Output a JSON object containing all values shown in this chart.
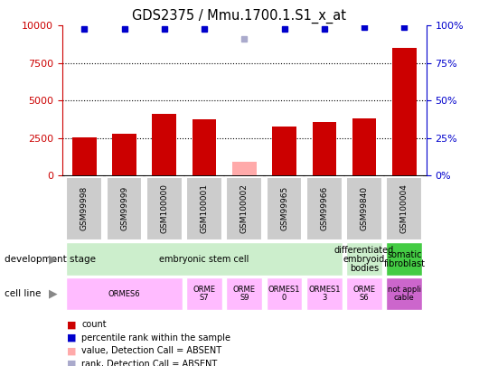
{
  "title": "GDS2375 / Mmu.1700.1.S1_x_at",
  "samples": [
    "GSM99998",
    "GSM99999",
    "GSM100000",
    "GSM100001",
    "GSM100002",
    "GSM99965",
    "GSM99966",
    "GSM99840",
    "GSM100004"
  ],
  "counts": [
    2550,
    2800,
    4100,
    3750,
    900,
    3300,
    3600,
    3800,
    8500
  ],
  "ranks": [
    98,
    98,
    98,
    98,
    91,
    98,
    98,
    99,
    99
  ],
  "absent": [
    false,
    false,
    false,
    false,
    true,
    false,
    false,
    false,
    false
  ],
  "ylim_left": [
    0,
    10000
  ],
  "ylim_right": [
    0,
    100
  ],
  "yticks_left": [
    0,
    2500,
    5000,
    7500,
    10000
  ],
  "yticks_right": [
    0,
    25,
    50,
    75,
    100
  ],
  "bar_color_normal": "#cc0000",
  "bar_color_absent": "#ffaaaa",
  "rank_color_normal": "#0000cc",
  "rank_color_absent": "#aaaacc",
  "bg_color": "#ffffff",
  "left_axis_color": "#cc0000",
  "right_axis_color": "#0000cc",
  "dev_segs": [
    {
      "start": 0,
      "end": 6,
      "text": "embryonic stem cell",
      "color": "#cceecc"
    },
    {
      "start": 7,
      "end": 7,
      "text": "differentiated\nembryoid\nbodies",
      "color": "#cceecc"
    },
    {
      "start": 8,
      "end": 8,
      "text": "somatic\nfibroblast",
      "color": "#44cc44"
    }
  ],
  "cell_segs": [
    {
      "start": 0,
      "end": 2,
      "text": "ORMES6",
      "color": "#ffbbff"
    },
    {
      "start": 3,
      "end": 3,
      "text": "ORME\nS7",
      "color": "#ffbbff"
    },
    {
      "start": 4,
      "end": 4,
      "text": "ORME\nS9",
      "color": "#ffbbff"
    },
    {
      "start": 5,
      "end": 5,
      "text": "ORMES1\n0",
      "color": "#ffbbff"
    },
    {
      "start": 6,
      "end": 6,
      "text": "ORMES1\n3",
      "color": "#ffbbff"
    },
    {
      "start": 7,
      "end": 7,
      "text": "ORME\nS6",
      "color": "#ffbbff"
    },
    {
      "start": 8,
      "end": 8,
      "text": "not appli\ncable",
      "color": "#cc66cc"
    }
  ],
  "legend_items": [
    {
      "label": "count",
      "color": "#cc0000"
    },
    {
      "label": "percentile rank within the sample",
      "color": "#0000cc"
    },
    {
      "label": "value, Detection Call = ABSENT",
      "color": "#ffaaaa"
    },
    {
      "label": "rank, Detection Call = ABSENT",
      "color": "#aaaacc"
    }
  ]
}
